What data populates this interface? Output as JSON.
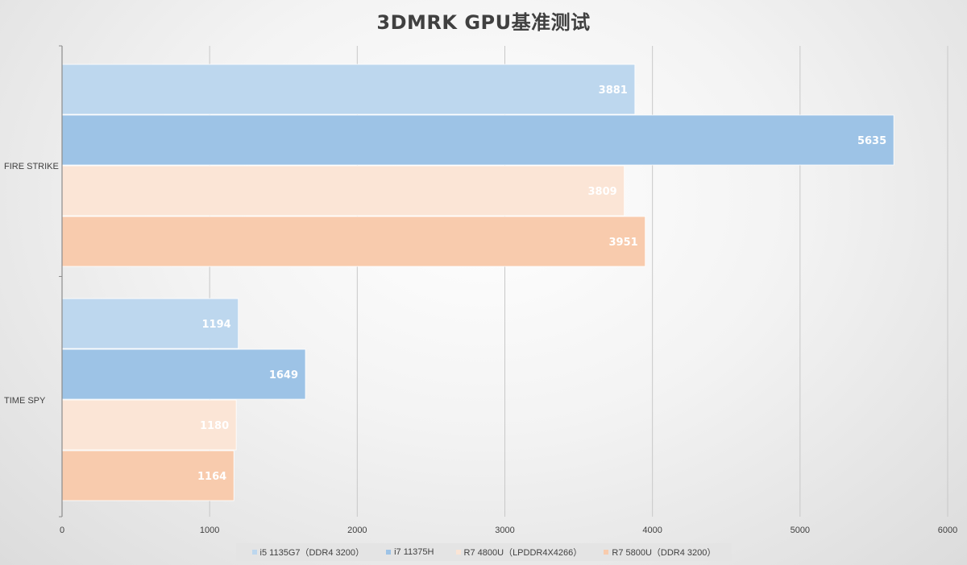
{
  "chart_data": {
    "type": "bar",
    "orientation": "horizontal",
    "title": "3DMRK GPU基准测试",
    "categories": [
      "FIRE STRIKE",
      "TIME SPY"
    ],
    "series": [
      {
        "name": "i5 1135G7（DDR4 3200）",
        "values": [
          3881,
          1194
        ],
        "color": "#bdd7ee"
      },
      {
        "name": "i7 11375H",
        "values": [
          5635,
          1649
        ],
        "color": "#9dc3e6"
      },
      {
        "name": "R7 4800U（LPDDR4X4266）",
        "values": [
          3809,
          1180
        ],
        "color": "#fbe5d6"
      },
      {
        "name": "R7 5800U（DDR4 3200）",
        "values": [
          3951,
          1164
        ],
        "color": "#f8cbad"
      }
    ],
    "xlim": [
      0,
      6000
    ],
    "xticks": [
      0,
      1000,
      2000,
      3000,
      4000,
      5000,
      6000
    ],
    "xlabel": "",
    "ylabel": "",
    "grid": true,
    "legend_position": "bottom",
    "data_labels": true
  }
}
